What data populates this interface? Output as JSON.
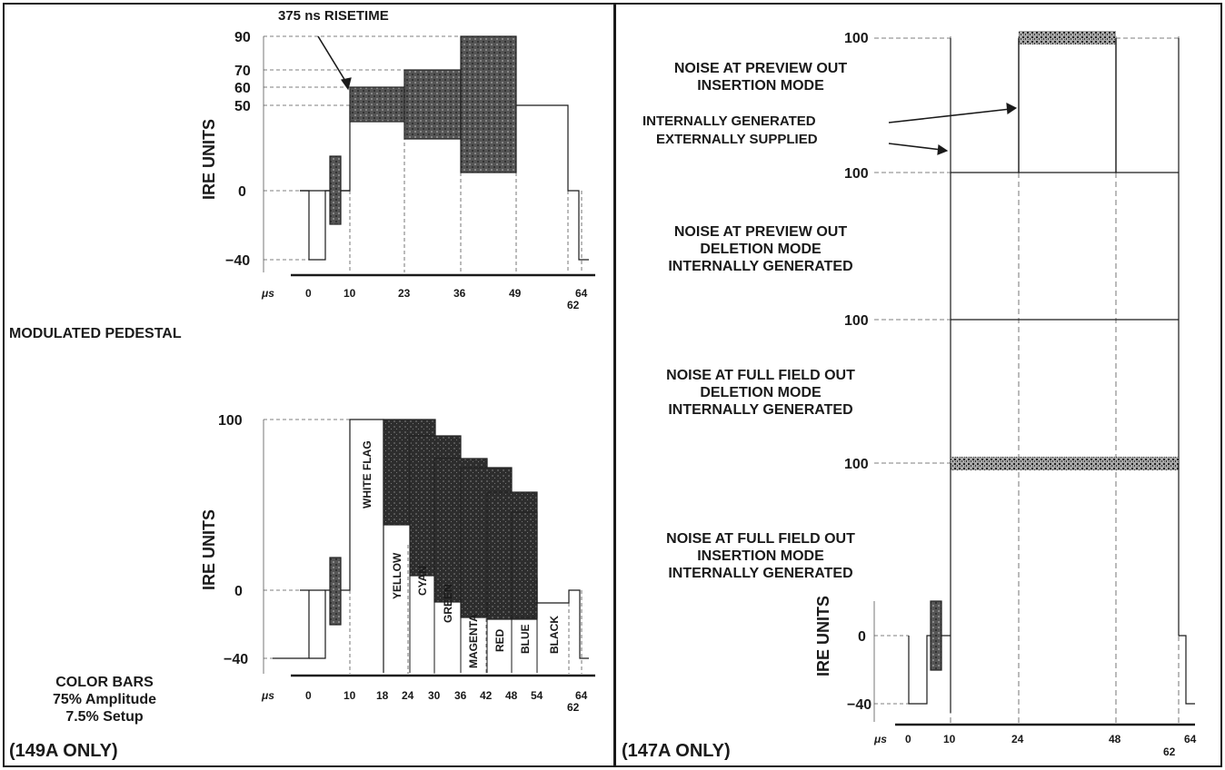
{
  "figures": {
    "modulated_pedestal": {
      "label": "MODULATED PEDESTAL",
      "y_axis_label": "IRE UNITS",
      "y_ticks": [
        "90",
        "70",
        "60",
        "50",
        "0",
        "−40"
      ],
      "x_unit": "μs",
      "x_ticks": [
        "0",
        "10",
        "23",
        "36",
        "49",
        "64"
      ],
      "x_tick_extra": "62",
      "annotation": "375 ns RISETIME"
    },
    "color_bars": {
      "label_lines": [
        "COLOR BARS",
        "75% Amplitude",
        "7.5% Setup"
      ],
      "y_axis_label": "IRE UNITS",
      "y_ticks": [
        "100",
        "0",
        "−40"
      ],
      "x_unit": "μs",
      "x_ticks": [
        "0",
        "10",
        "18",
        "24",
        "30",
        "36",
        "42",
        "48",
        "54",
        "64"
      ],
      "x_tick_extra": "62",
      "bar_labels": [
        "WHITE FLAG",
        "YELLOW",
        "CYAN",
        "GREEN",
        "MAGENTA",
        "RED",
        "BLUE",
        "BLACK"
      ]
    },
    "noise": {
      "panel1_lines": [
        "NOISE AT PREVIEW OUT",
        "INSERTION MODE"
      ],
      "panel1_arrows": [
        "INTERNALLY GENERATED",
        "EXTERNALLY SUPPLIED"
      ],
      "panel2_lines": [
        "NOISE AT PREVIEW OUT",
        "DELETION MODE",
        "INTERNALLY GENERATED"
      ],
      "panel3_lines": [
        "NOISE AT FULL FIELD OUT",
        "DELETION MODE",
        "INTERNALLY GENERATED"
      ],
      "panel4_lines": [
        "NOISE AT FULL FIELD OUT",
        "INSERTION MODE",
        "INTERNALLY GENERATED"
      ],
      "level_label": "100",
      "y_axis_label": "IRE UNITS",
      "y_ticks": [
        "0",
        "−40"
      ],
      "x_unit": "μs",
      "x_ticks": [
        "0",
        "10",
        "24",
        "48",
        "64"
      ],
      "x_tick_extra": "62"
    }
  },
  "footers": {
    "left": "(149A ONLY)",
    "right": "(147A ONLY)"
  }
}
